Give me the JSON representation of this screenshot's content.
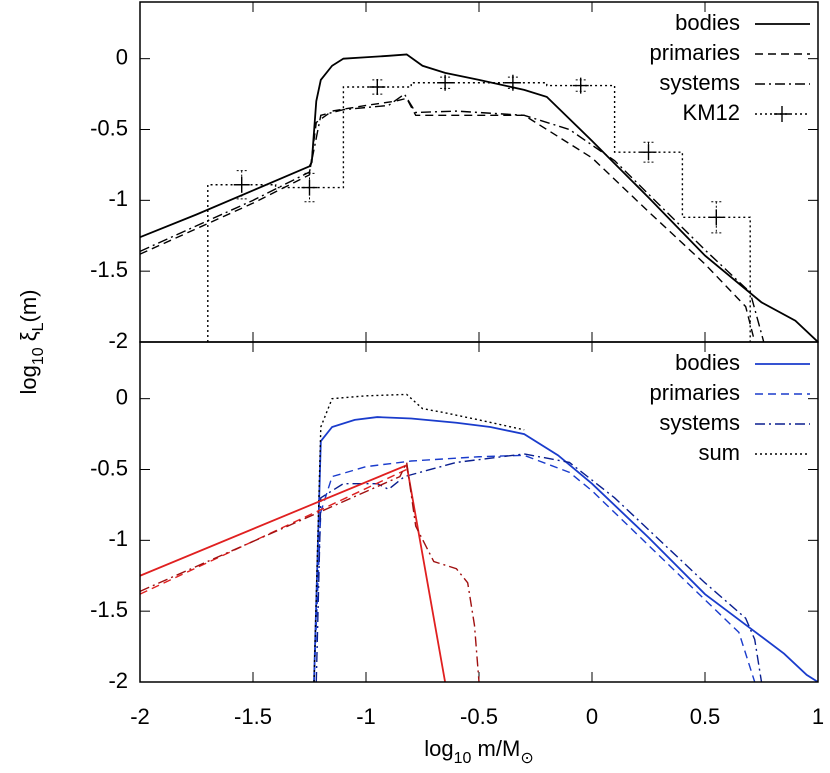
{
  "chart_data": [
    {
      "type": "line",
      "ylabel": [
        "log",
        "10",
        " ξ",
        "L",
        "(m)"
      ],
      "xlim": [
        -2,
        1
      ],
      "ylim": [
        -2,
        0.4
      ],
      "xticks": [
        -2,
        -1.5,
        -1,
        -0.5,
        0,
        0.5,
        1
      ],
      "yticks": [
        0,
        -0.5,
        -1,
        -1.5,
        -2
      ],
      "legend": "top-right",
      "series": [
        {
          "name": "bodies",
          "color": "#000000",
          "dash": "solid",
          "x": [
            -2,
            -1.75,
            -1.5,
            -1.25,
            -1.24,
            -1.22,
            -1.2,
            -1.15,
            -1.1,
            -1.0,
            -0.9,
            -0.82,
            -0.75,
            -0.65,
            -0.5,
            -0.3,
            -0.2,
            0,
            0.25,
            0.5,
            0.75,
            0.9,
            1.0
          ],
          "values": [
            -1.26,
            -1.1,
            -0.93,
            -0.76,
            -0.73,
            -0.3,
            -0.15,
            -0.05,
            0.0,
            0.01,
            0.02,
            0.03,
            -0.05,
            -0.1,
            -0.15,
            -0.22,
            -0.27,
            -0.58,
            -0.98,
            -1.39,
            -1.72,
            -1.85,
            -2.0
          ]
        },
        {
          "name": "primaries",
          "color": "#000000",
          "dash": "dashed",
          "x": [
            -2,
            -1.5,
            -1.25,
            -1.22,
            -1.15,
            -1.0,
            -0.87,
            -0.82,
            -0.78,
            -0.7,
            -0.3,
            0,
            0.25,
            0.5,
            0.68,
            0.72
          ],
          "values": [
            -1.38,
            -1.02,
            -0.82,
            -0.45,
            -0.37,
            -0.33,
            -0.3,
            -0.28,
            -0.4,
            -0.4,
            -0.4,
            -0.7,
            -1.08,
            -1.45,
            -1.75,
            -2.0
          ]
        },
        {
          "name": "systems",
          "color": "#000000",
          "dash": "dashdot",
          "x": [
            -2,
            -1.5,
            -1.25,
            -1.2,
            -1.1,
            -0.9,
            -0.83,
            -0.78,
            -0.6,
            -0.3,
            -0.1,
            0.1,
            0.5,
            0.7,
            0.76
          ],
          "values": [
            -1.36,
            -1.0,
            -0.8,
            -0.4,
            -0.36,
            -0.33,
            -0.25,
            -0.38,
            -0.37,
            -0.4,
            -0.5,
            -0.72,
            -1.35,
            -1.65,
            -2.0
          ]
        },
        {
          "name": "KM12",
          "color": "#000000",
          "dash": "dotted",
          "bins": [
            -1.7,
            -1.4,
            -1.1,
            -0.8,
            -0.5,
            -0.2,
            0.1,
            0.4,
            0.7
          ],
          "x": [
            -1.55,
            -1.25,
            -0.95,
            -0.65,
            -0.35,
            -0.05,
            0.25,
            0.55
          ],
          "values": [
            -0.89,
            -0.91,
            -0.2,
            -0.17,
            -0.17,
            -0.19,
            -0.66,
            -1.12
          ],
          "errors": [
            0.1,
            0.1,
            0.05,
            0.04,
            0.04,
            0.04,
            0.07,
            0.11
          ]
        }
      ]
    },
    {
      "type": "line",
      "xlabel": [
        "log",
        "10",
        " m/M",
        "⊙"
      ],
      "xlim": [
        -2,
        1
      ],
      "ylim": [
        -2,
        0.4
      ],
      "xticks": [
        -2,
        -1.5,
        -1,
        -0.5,
        0,
        0.5,
        1
      ],
      "yticks": [
        0,
        -0.5,
        -1,
        -1.5,
        -2
      ],
      "legend": "top-right",
      "series": [
        {
          "name": "bodies",
          "color": "#1a3ccc",
          "dash": "solid",
          "x": [
            -1.23,
            -1.2,
            -1.15,
            -1.05,
            -0.95,
            -0.8,
            -0.6,
            -0.45,
            -0.3,
            -0.15,
            0,
            0.25,
            0.5,
            0.7,
            0.85,
            0.95,
            1.0
          ],
          "values": [
            -2.0,
            -0.3,
            -0.2,
            -0.15,
            -0.13,
            -0.14,
            -0.17,
            -0.2,
            -0.25,
            -0.4,
            -0.6,
            -0.98,
            -1.38,
            -1.62,
            -1.8,
            -1.95,
            -2.0
          ]
        },
        {
          "name": "primaries",
          "color": "#1a3ccc",
          "dash": "dashed",
          "x": [
            -1.23,
            -1.2,
            -1.15,
            -1.0,
            -0.8,
            -0.5,
            -0.3,
            -0.1,
            0,
            0.5,
            0.65,
            0.7,
            0.72
          ],
          "values": [
            -2.0,
            -0.8,
            -0.55,
            -0.48,
            -0.44,
            -0.41,
            -0.4,
            -0.52,
            -0.65,
            -1.42,
            -1.65,
            -1.9,
            -2.0
          ]
        },
        {
          "name": "systems",
          "color": "#0a1f8f",
          "dash": "dashdot",
          "x": [
            -1.22,
            -1.2,
            -1.1,
            -0.95,
            -0.9,
            -0.83,
            -0.6,
            -0.3,
            -0.1,
            0.1,
            0.5,
            0.68,
            0.72,
            0.75
          ],
          "values": [
            -2.0,
            -0.7,
            -0.6,
            -0.6,
            -0.64,
            -0.55,
            -0.45,
            -0.39,
            -0.45,
            -0.7,
            -1.3,
            -1.55,
            -1.7,
            -2.0
          ]
        },
        {
          "name": "sum",
          "color": "#000000",
          "dash": "dotted",
          "x": [
            -1.23,
            -1.2,
            -1.15,
            -1.0,
            -0.82,
            -0.75,
            -0.65,
            -0.5,
            -0.3
          ],
          "values": [
            -2.0,
            -0.2,
            0.0,
            0.02,
            0.03,
            -0.07,
            -0.1,
            -0.15,
            -0.22
          ]
        },
        {
          "color": "#e02020",
          "dash": "solid",
          "x": [
            -2,
            -0.82,
            -0.65
          ],
          "values": [
            -1.25,
            -0.47,
            -2.0
          ]
        },
        {
          "color": "#e02020",
          "dash": "dashed",
          "x": [
            -2,
            -0.82
          ],
          "values": [
            -1.38,
            -0.5
          ]
        },
        {
          "color": "#a01010",
          "dash": "dashdot",
          "x": [
            -2,
            -0.85,
            -0.82,
            -0.78,
            -0.7,
            -0.6,
            -0.55,
            -0.52,
            -0.5
          ],
          "values": [
            -1.36,
            -0.55,
            -0.45,
            -0.9,
            -1.15,
            -1.2,
            -1.3,
            -1.6,
            -2.0
          ]
        }
      ]
    }
  ]
}
